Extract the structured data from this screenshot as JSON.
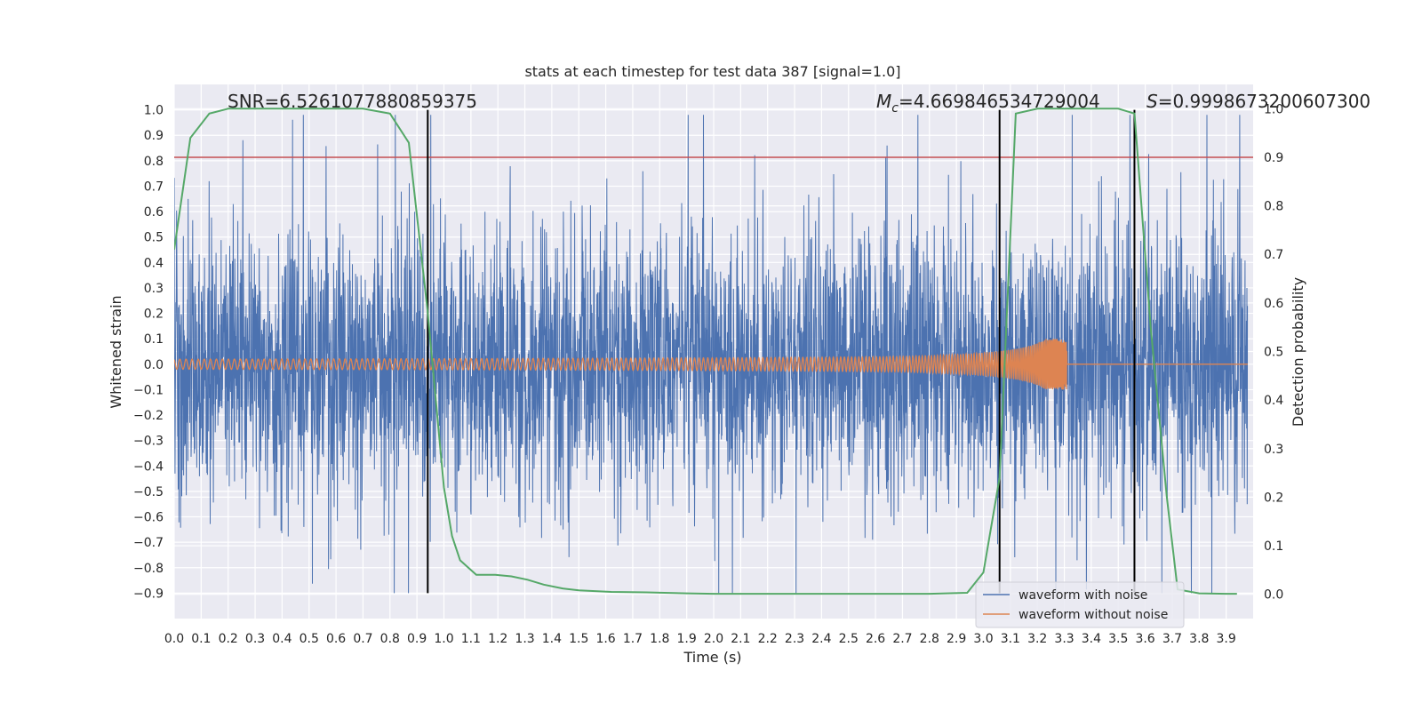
{
  "chart_data": {
    "type": "line",
    "title": "stats at each timestep for test data 387 [signal=1.0]",
    "xlabel": "Time (s)",
    "ylabel": "Whitened strain",
    "y2label": "Detection probability",
    "xlim": [
      0.0,
      4.0
    ],
    "ylim": [
      -1.0,
      1.1
    ],
    "y2lim": [
      -0.05,
      1.05
    ],
    "xticks": [
      0.0,
      0.1,
      0.2,
      0.3,
      0.4,
      0.5,
      0.6,
      0.7,
      0.8,
      0.9,
      1.0,
      1.1,
      1.2,
      1.3,
      1.4,
      1.5,
      1.6,
      1.7,
      1.8,
      1.9,
      2.0,
      2.1,
      2.2,
      2.3,
      2.4,
      2.5,
      2.6,
      2.7,
      2.8,
      2.9,
      3.0,
      3.1,
      3.2,
      3.3,
      3.4,
      3.5,
      3.6,
      3.7,
      3.8,
      3.9
    ],
    "xtick_labels": [
      "0.0",
      "0.1",
      "0.2",
      "0.3",
      "0.4",
      "0.5",
      "0.6",
      "0.7",
      "0.8",
      "0.9",
      "1.0",
      "1.1",
      "1.2",
      "1.3",
      "1.4",
      "1.5",
      "1.6",
      "1.7",
      "1.8",
      "1.9",
      "2.0",
      "2.1",
      "2.2",
      "2.3",
      "2.4",
      "2.5",
      "2.6",
      "2.7",
      "2.8",
      "2.9",
      "3.0",
      "3.1",
      "3.2",
      "3.3",
      "3.4",
      "3.5",
      "3.6",
      "3.7",
      "3.8",
      "3.9"
    ],
    "yticks": [
      -0.9,
      -0.8,
      -0.7,
      -0.6,
      -0.5,
      -0.4,
      -0.3,
      -0.2,
      -0.1,
      0.0,
      0.1,
      0.2,
      0.3,
      0.4,
      0.5,
      0.6,
      0.7,
      0.8,
      0.9,
      1.0
    ],
    "ytick_labels": [
      "−0.9",
      "−0.8",
      "−0.7",
      "−0.6",
      "−0.5",
      "−0.4",
      "−0.3",
      "−0.2",
      "−0.1",
      "0.0",
      "0.1",
      "0.2",
      "0.3",
      "0.4",
      "0.5",
      "0.6",
      "0.7",
      "0.8",
      "0.9",
      "1.0"
    ],
    "y2ticks": [
      0.0,
      0.1,
      0.2,
      0.3,
      0.4,
      0.5,
      0.6,
      0.7,
      0.8,
      0.9,
      1.0
    ],
    "y2tick_labels": [
      "0.0",
      "0.1",
      "0.2",
      "0.3",
      "0.4",
      "0.5",
      "0.6",
      "0.7",
      "0.8",
      "0.9",
      "1.0"
    ],
    "grid": true,
    "legend_position": "lower-right",
    "series": [
      {
        "name": "waveform with noise",
        "color": "#4c72b0",
        "style": "dense-noise",
        "amplitude_range": [
          -0.9,
          0.98
        ]
      },
      {
        "name": "waveform without noise",
        "color": "#dd8452",
        "style": "chirp",
        "merger_time": 3.31,
        "pre_merger_amplitude": 0.02,
        "peak_amplitude": 0.1
      },
      {
        "name": "detection probability",
        "axis": "right",
        "color": "#55a868",
        "x": [
          0.0,
          0.06,
          0.13,
          0.2,
          0.3,
          0.4,
          0.5,
          0.6,
          0.7,
          0.8,
          0.87,
          0.94,
          0.98,
          1.0,
          1.03,
          1.06,
          1.12,
          1.19,
          1.25,
          1.31,
          1.37,
          1.44,
          1.5,
          1.62,
          1.75,
          1.9,
          2.0,
          2.2,
          2.5,
          2.8,
          2.94,
          3.0,
          3.06,
          3.12,
          3.2,
          3.3,
          3.4,
          3.5,
          3.56,
          3.62,
          3.68,
          3.72,
          3.8,
          3.9,
          3.94
        ],
        "y": [
          0.71,
          0.94,
          0.99,
          1.0,
          1.0,
          1.0,
          1.0,
          1.0,
          1.0,
          0.99,
          0.93,
          0.58,
          0.34,
          0.22,
          0.12,
          0.07,
          0.04,
          0.04,
          0.037,
          0.03,
          0.02,
          0.012,
          0.008,
          0.005,
          0.004,
          0.002,
          0.001,
          0.001,
          0.001,
          0.001,
          0.003,
          0.045,
          0.24,
          0.99,
          1.0,
          1.0,
          1.0,
          1.0,
          0.99,
          0.55,
          0.2,
          0.01,
          0.002,
          0.001,
          0.001
        ]
      }
    ],
    "hlines": [
      {
        "axis": "right",
        "y": 0.9,
        "color": "#c44e52"
      }
    ],
    "vlines": [
      {
        "x": 0.94,
        "y_range": [
          -0.9,
          1.0
        ],
        "color": "#000000"
      },
      {
        "x": 3.06,
        "y_range": [
          -0.9,
          1.0
        ],
        "color": "#000000"
      },
      {
        "x": 3.56,
        "y_range": [
          -0.9,
          1.0
        ],
        "color": "#000000"
      }
    ],
    "annotations": [
      {
        "text": "SNR=6.5261077880859375",
        "x": 0.2,
        "y": 1.05
      },
      {
        "text_symbol": "M",
        "text_subscript": "c",
        "text": "=4.669846534729004",
        "x": 2.6,
        "y": 1.05
      },
      {
        "text_symbol": "S",
        "text": "=0.9998673200607300",
        "x": 3.6,
        "y": 1.05
      }
    ],
    "legend": [
      "waveform with noise",
      "waveform without noise"
    ]
  }
}
